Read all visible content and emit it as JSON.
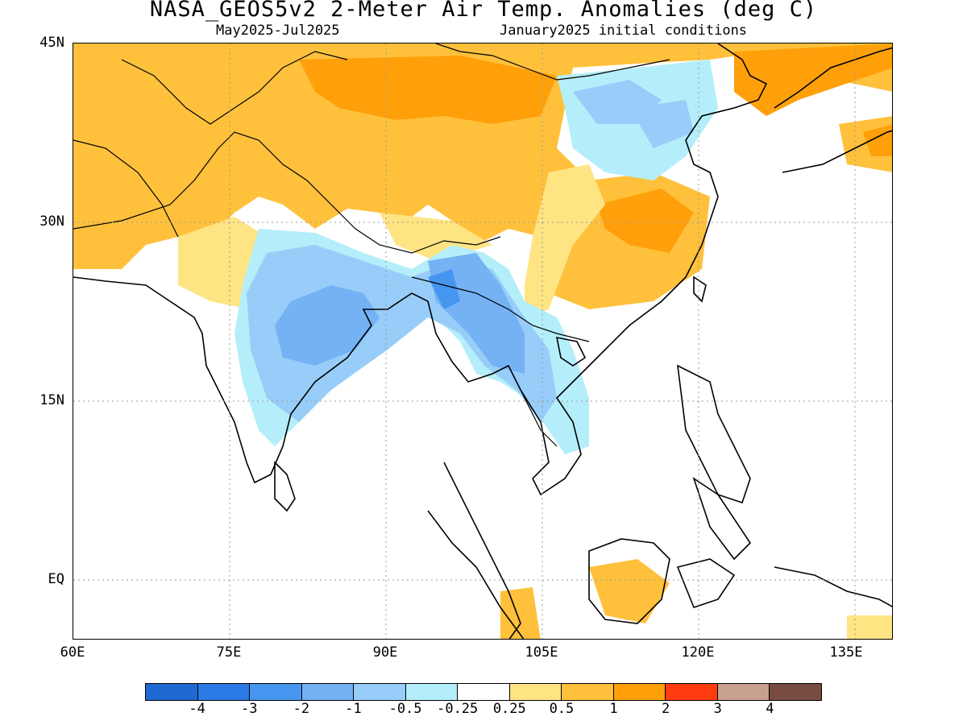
{
  "title": "NASA_GEOS5v2 2-Meter Air Temp. Anomalies (deg C)",
  "subtitle_left": "May2025-Jul2025",
  "subtitle_right": "January2025 initial conditions",
  "lat_labels": [
    "45N",
    "30N",
    "15N",
    "EQ"
  ],
  "lon_labels": [
    "60E",
    "75E",
    "90E",
    "105E",
    "120E",
    "135E"
  ],
  "colorbar": {
    "colors": [
      "#1f6ad2",
      "#2b7be6",
      "#4696f0",
      "#74b2f4",
      "#97cdf8",
      "#b4eefa",
      "#ffffff",
      "#ffe483",
      "#ffc13c",
      "#ffa00a",
      "#ff3c10",
      "#c8a090",
      "#784c40"
    ],
    "labels": [
      "-4",
      "-3",
      "-2",
      "-1",
      "-0.5",
      "-0.25",
      "0.25",
      "0.5",
      "1",
      "2",
      "3",
      "4"
    ]
  }
}
